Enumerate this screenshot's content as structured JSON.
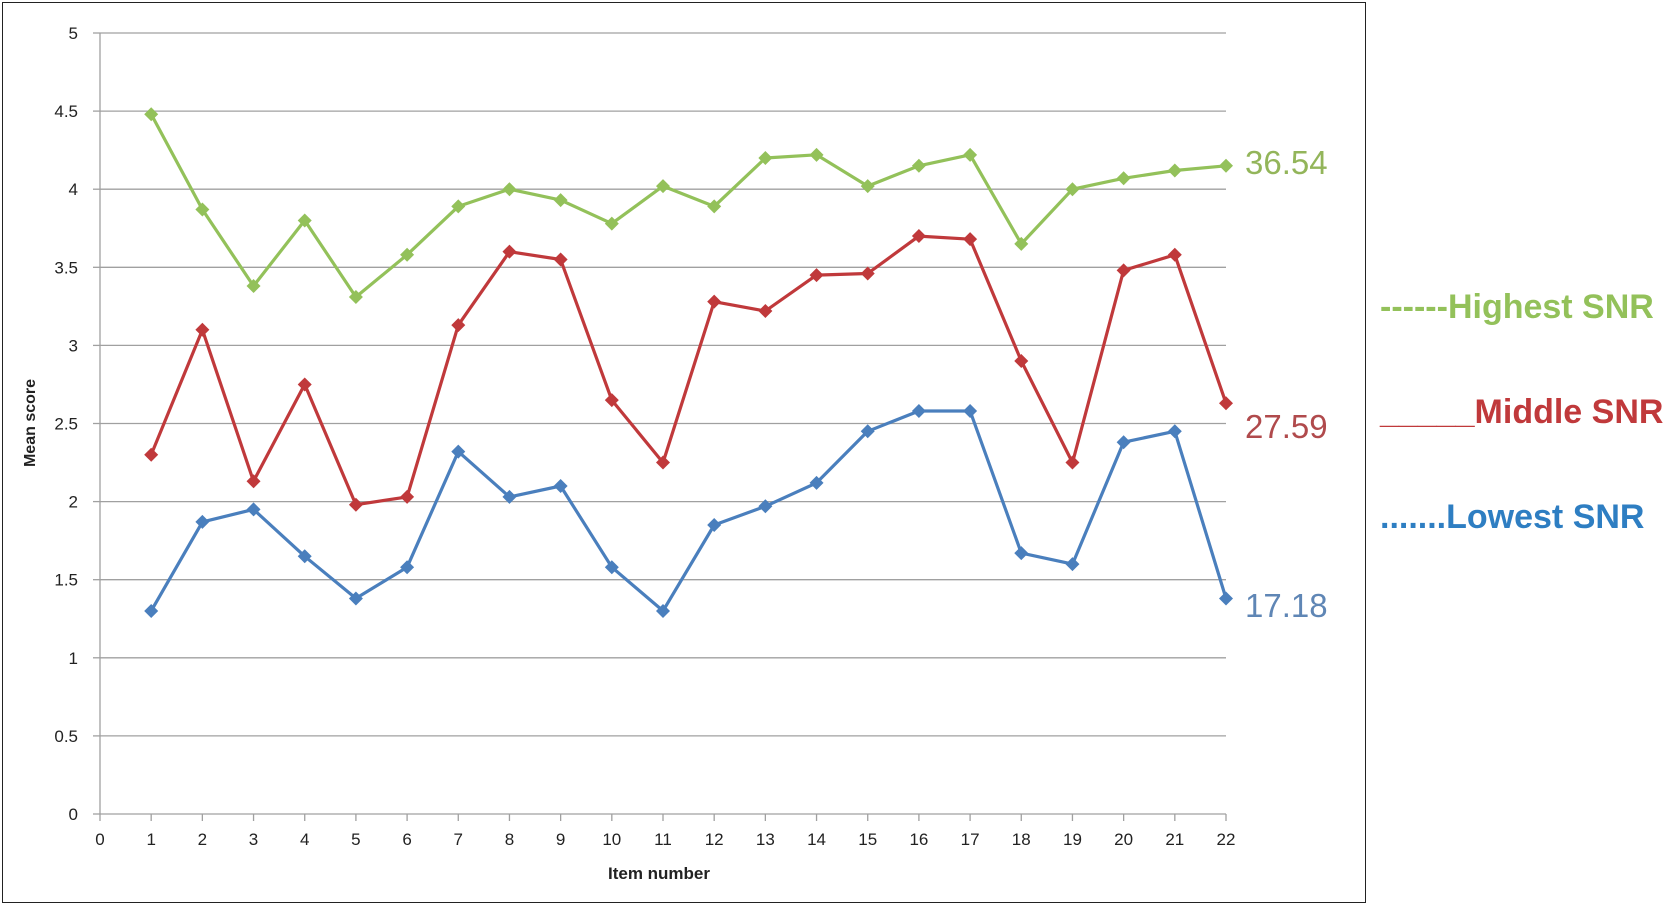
{
  "chart_data": {
    "type": "line",
    "xlabel": "Item number",
    "ylabel": "Mean score",
    "xlim": [
      0,
      22
    ],
    "ylim": [
      0,
      5
    ],
    "x_ticks": [
      0,
      1,
      2,
      3,
      4,
      5,
      6,
      7,
      8,
      9,
      10,
      11,
      12,
      13,
      14,
      15,
      16,
      17,
      18,
      19,
      20,
      21,
      22
    ],
    "y_ticks": [
      0,
      0.5,
      1,
      1.5,
      2,
      2.5,
      3,
      3.5,
      4,
      4.5,
      5
    ],
    "y_tick_labels": [
      "0",
      "0.5",
      "1",
      "1.5",
      "2",
      "2.5",
      "3",
      "3.5",
      "4",
      "4.5",
      "5"
    ],
    "grid": "horizontal",
    "legend_position": "right",
    "x": [
      1,
      2,
      3,
      4,
      5,
      6,
      7,
      8,
      9,
      10,
      11,
      12,
      13,
      14,
      15,
      16,
      17,
      18,
      19,
      20,
      21,
      22
    ],
    "series": [
      {
        "name": "Highest SNR",
        "legend_prefix": "------",
        "end_label": "36.54",
        "color": "#93c15a",
        "values": [
          4.48,
          3.87,
          3.38,
          3.8,
          3.31,
          3.58,
          3.89,
          4.0,
          3.93,
          3.78,
          4.02,
          3.89,
          4.2,
          4.22,
          4.02,
          4.15,
          4.22,
          3.65,
          4.0,
          4.07,
          4.12,
          4.15
        ]
      },
      {
        "name": "Middle SNR",
        "legend_prefix": "_____",
        "end_label": "27.59",
        "color": "#c0393b",
        "values": [
          2.3,
          3.1,
          2.13,
          2.75,
          1.98,
          2.03,
          3.13,
          3.6,
          3.55,
          2.65,
          2.25,
          3.28,
          3.22,
          3.45,
          3.46,
          3.7,
          3.68,
          2.9,
          2.25,
          3.48,
          3.58,
          2.63
        ]
      },
      {
        "name": "Lowest SNR",
        "legend_prefix": ".......",
        "end_label": "17.18",
        "color": "#4a7fbd",
        "values": [
          1.3,
          1.87,
          1.95,
          1.65,
          1.38,
          1.58,
          2.32,
          2.03,
          2.1,
          1.58,
          1.3,
          1.85,
          1.97,
          2.12,
          2.45,
          2.58,
          2.58,
          1.67,
          1.6,
          2.38,
          2.45,
          1.38
        ]
      }
    ]
  },
  "colors": {
    "legend_highest": "#93c15a",
    "legend_middle": "#c0393b",
    "legend_lowest": "#2e7ec2",
    "end_label_highest": "#93b55a",
    "end_label_middle": "#b04a4c",
    "end_label_lowest": "#5f86b5",
    "gridline": "#a0a0a0",
    "axis_text": "#222222"
  }
}
